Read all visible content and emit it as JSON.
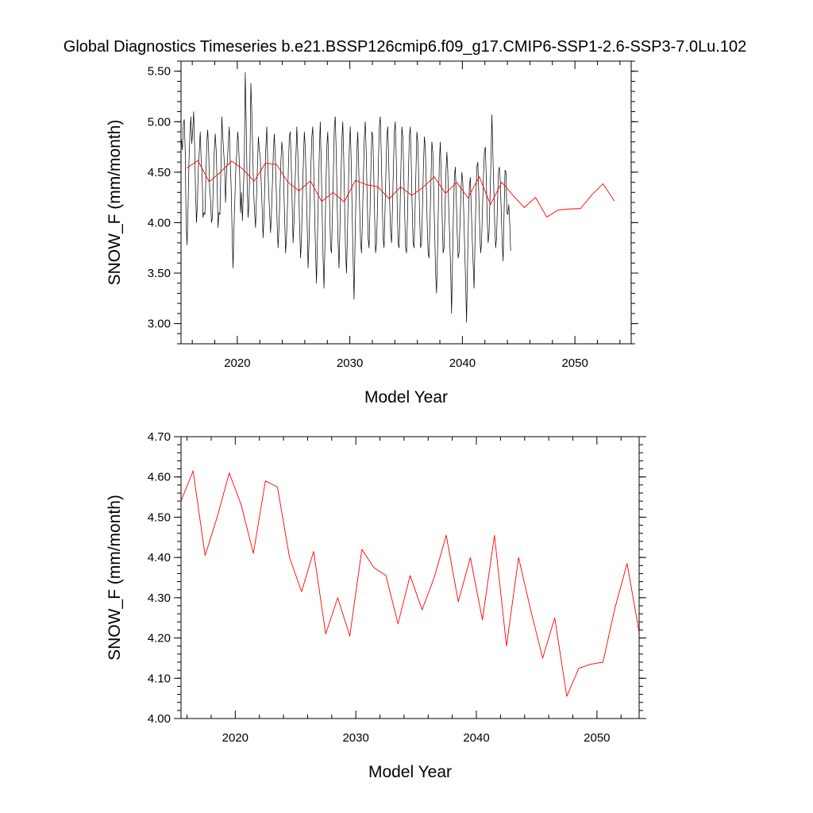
{
  "figure": {
    "title": "Global Diagnostics Timeseries b.e21.BSSP126cmip6.f09_g17.CMIP6-SSP1-2.6-SSP3-7.0Lu.102"
  },
  "colors": {
    "monthly": "#000000",
    "annual": "#ff0000",
    "frame": "#000000",
    "background": "#ffffff"
  },
  "chart_data": [
    {
      "type": "line",
      "xlabel": "Model Year",
      "ylabel": "SNOW_F (mm/month)",
      "xlim": [
        2015.0,
        2055.0
      ],
      "ylim": [
        2.8,
        5.6
      ],
      "xticks": [
        {
          "value": 2020,
          "label": "2020"
        },
        {
          "value": 2030,
          "label": "2030"
        },
        {
          "value": 2040,
          "label": "2040"
        },
        {
          "value": 2050,
          "label": "2050"
        }
      ],
      "yticks": [
        {
          "value": 3.0,
          "label": "3.00"
        },
        {
          "value": 3.5,
          "label": "3.50"
        },
        {
          "value": 4.0,
          "label": "4.00"
        },
        {
          "value": 4.5,
          "label": "4.50"
        },
        {
          "value": 5.0,
          "label": "5.00"
        },
        {
          "value": 5.5,
          "label": "5.50"
        }
      ],
      "grid": false,
      "series": [
        {
          "kind": "monthly",
          "color": "#000000",
          "start": 2015.04,
          "step": 0.08333,
          "values": [
            4.82,
            4.72,
            4.98,
            5.02,
            4.7,
            3.98,
            3.78,
            4.15,
            4.6,
            4.88,
            5.05,
            4.78,
            4.92,
            5.1,
            4.76,
            4.3,
            4.0,
            4.2,
            4.55,
            4.7,
            4.9,
            4.62,
            4.48,
            4.05,
            4.1,
            4.08,
            4.45,
            4.8,
            4.92,
            4.7,
            4.35,
            4.22,
            4.0,
            4.05,
            4.4,
            4.7,
            4.88,
            4.72,
            4.4,
            3.95,
            4.1,
            4.08,
            4.5,
            5.05,
            4.86,
            4.7,
            4.55,
            4.2,
            4.48,
            4.62,
            4.8,
            4.95,
            4.6,
            4.35,
            3.9,
            3.55,
            3.95,
            4.25,
            4.55,
            4.7,
            4.9,
            4.75,
            4.5,
            4.1,
            4.3,
            4.02,
            4.3,
            4.62,
            5.49,
            5.0,
            4.4,
            4.05,
            4.2,
            4.6,
            5.38,
            5.1,
            4.7,
            4.3,
            4.1,
            3.95,
            4.25,
            4.55,
            4.85,
            4.72,
            4.65,
            4.4,
            4.15,
            3.85,
            4.05,
            4.45,
            4.75,
            4.95,
            4.6,
            4.3,
            4.1,
            3.9,
            4.1,
            4.4,
            4.7,
            4.88,
            4.65,
            4.35,
            4.0,
            3.75,
            3.95,
            4.3,
            4.6,
            4.8,
            4.7,
            4.4,
            4.05,
            3.7,
            3.85,
            4.15,
            4.55,
            4.85,
            4.9,
            4.6,
            4.2,
            3.8,
            4.0,
            4.35,
            4.65,
            4.95,
            4.7,
            4.35,
            3.95,
            3.65,
            3.85,
            4.25,
            4.6,
            4.9,
            4.75,
            4.4,
            4.0,
            3.55,
            3.8,
            4.2,
            4.55,
            4.85,
            4.95,
            4.55,
            4.1,
            3.7,
            3.4,
            3.85,
            4.3,
            4.7,
            5.0,
            4.6,
            4.1,
            3.65,
            3.35,
            3.8,
            4.35,
            4.75,
            4.9,
            4.55,
            4.15,
            3.75,
            3.7,
            4.1,
            4.5,
            4.95,
            5.05,
            4.7,
            4.2,
            3.8,
            3.55,
            3.95,
            4.4,
            4.8,
            5.0,
            4.65,
            4.15,
            3.7,
            3.5,
            3.9,
            4.35,
            4.75,
            4.95,
            4.6,
            4.1,
            3.65,
            3.24,
            3.75,
            4.25,
            4.7,
            4.9,
            4.55,
            4.15,
            3.8,
            3.7,
            4.05,
            4.45,
            4.85,
            5.0,
            4.7,
            4.25,
            3.85,
            3.75,
            4.1,
            4.55,
            4.9,
            4.85,
            4.5,
            4.05,
            3.7,
            3.8,
            4.15,
            4.6,
            4.95,
            5.05,
            4.7,
            4.25,
            3.85,
            3.75,
            4.1,
            4.5,
            4.85,
            4.95,
            4.6,
            4.2,
            3.9,
            3.8,
            4.15,
            4.55,
            4.9,
            5.0,
            4.65,
            4.2,
            3.8,
            3.75,
            4.1,
            4.55,
            4.95,
            4.85,
            4.5,
            4.1,
            3.75,
            3.7,
            4.05,
            4.5,
            4.85,
            4.95,
            4.6,
            4.15,
            3.8,
            3.75,
            4.1,
            4.5,
            4.9,
            4.8,
            4.45,
            4.05,
            3.75,
            3.8,
            4.15,
            4.55,
            4.85,
            4.75,
            4.4,
            4.0,
            3.7,
            3.65,
            4.0,
            4.4,
            4.8,
            4.7,
            4.3,
            3.9,
            3.5,
            3.3,
            3.7,
            4.2,
            4.6,
            4.8,
            4.45,
            4.05,
            3.7,
            3.75,
            4.1,
            4.5,
            4.7,
            4.5,
            4.15,
            3.85,
            3.55,
            3.1,
            3.6,
            4.1,
            4.45,
            4.55,
            4.25,
            3.9,
            3.65,
            3.7,
            4.0,
            4.3,
            4.5,
            4.4,
            4.1,
            3.75,
            3.4,
            3.01,
            3.55,
            4.05,
            4.35,
            4.45,
            4.15,
            3.85,
            3.6,
            3.35,
            3.8,
            4.25,
            4.55,
            4.6,
            4.3,
            3.95,
            3.7,
            3.8,
            4.15,
            4.45,
            4.7,
            4.75,
            4.45,
            4.05,
            3.8,
            3.9,
            4.25,
            4.6,
            5.07,
            4.7,
            4.35,
            4.0,
            3.75,
            3.85,
            4.2,
            4.5,
            4.55,
            4.4,
            4.1,
            3.8,
            3.62,
            4.1,
            4.52,
            4.5,
            4.1,
            4.08,
            4.18,
            4.0,
            3.72
          ]
        },
        {
          "kind": "annual",
          "color": "#ff0000",
          "x": [
            2015.5,
            2016.5,
            2017.5,
            2018.5,
            2019.5,
            2020.5,
            2021.5,
            2022.5,
            2023.5,
            2024.5,
            2025.5,
            2026.5,
            2027.5,
            2028.5,
            2029.5,
            2030.5,
            2031.5,
            2032.5,
            2033.5,
            2034.5,
            2035.5,
            2036.5,
            2037.5,
            2038.5,
            2039.5,
            2040.5,
            2041.5,
            2042.5,
            2043.5,
            2044.5,
            2045.5,
            2046.5,
            2047.5,
            2048.5,
            2049.5,
            2050.5,
            2051.5,
            2052.5,
            2053.5
          ],
          "values": [
            4.54,
            4.615,
            4.405,
            4.5,
            4.61,
            4.53,
            4.41,
            4.59,
            4.575,
            4.4,
            4.315,
            4.415,
            4.21,
            4.3,
            4.205,
            4.42,
            4.375,
            4.355,
            4.235,
            4.355,
            4.27,
            4.35,
            4.455,
            4.29,
            4.4,
            4.245,
            4.455,
            4.18,
            4.4,
            4.27,
            4.15,
            4.25,
            4.055,
            4.125,
            4.135,
            4.14,
            4.275,
            4.385,
            4.215
          ]
        }
      ]
    },
    {
      "type": "line",
      "xlabel": "Model Year",
      "ylabel": "SNOW_F (mm/month)",
      "xlim": [
        2015.5,
        2053.5
      ],
      "ylim": [
        4.0,
        4.7
      ],
      "xticks": [
        {
          "value": 2020,
          "label": "2020"
        },
        {
          "value": 2030,
          "label": "2030"
        },
        {
          "value": 2040,
          "label": "2040"
        },
        {
          "value": 2050,
          "label": "2050"
        }
      ],
      "yticks": [
        {
          "value": 4.0,
          "label": "4.00"
        },
        {
          "value": 4.1,
          "label": "4.10"
        },
        {
          "value": 4.2,
          "label": "4.20"
        },
        {
          "value": 4.3,
          "label": "4.30"
        },
        {
          "value": 4.4,
          "label": "4.40"
        },
        {
          "value": 4.5,
          "label": "4.50"
        },
        {
          "value": 4.6,
          "label": "4.60"
        },
        {
          "value": 4.7,
          "label": "4.70"
        }
      ],
      "grid": false,
      "series": [
        {
          "kind": "annual",
          "color": "#ff0000",
          "x": [
            2015.5,
            2016.5,
            2017.5,
            2018.5,
            2019.5,
            2020.5,
            2021.5,
            2022.5,
            2023.5,
            2024.5,
            2025.5,
            2026.5,
            2027.5,
            2028.5,
            2029.5,
            2030.5,
            2031.5,
            2032.5,
            2033.5,
            2034.5,
            2035.5,
            2036.5,
            2037.5,
            2038.5,
            2039.5,
            2040.5,
            2041.5,
            2042.5,
            2043.5,
            2044.5,
            2045.5,
            2046.5,
            2047.5,
            2048.5,
            2049.5,
            2050.5,
            2051.5,
            2052.5,
            2053.5
          ],
          "values": [
            4.54,
            4.615,
            4.405,
            4.5,
            4.61,
            4.53,
            4.41,
            4.59,
            4.575,
            4.4,
            4.315,
            4.415,
            4.21,
            4.3,
            4.205,
            4.42,
            4.375,
            4.355,
            4.235,
            4.355,
            4.27,
            4.35,
            4.455,
            4.29,
            4.4,
            4.245,
            4.455,
            4.18,
            4.4,
            4.27,
            4.15,
            4.25,
            4.055,
            4.125,
            4.135,
            4.14,
            4.275,
            4.385,
            4.215
          ]
        }
      ]
    }
  ]
}
